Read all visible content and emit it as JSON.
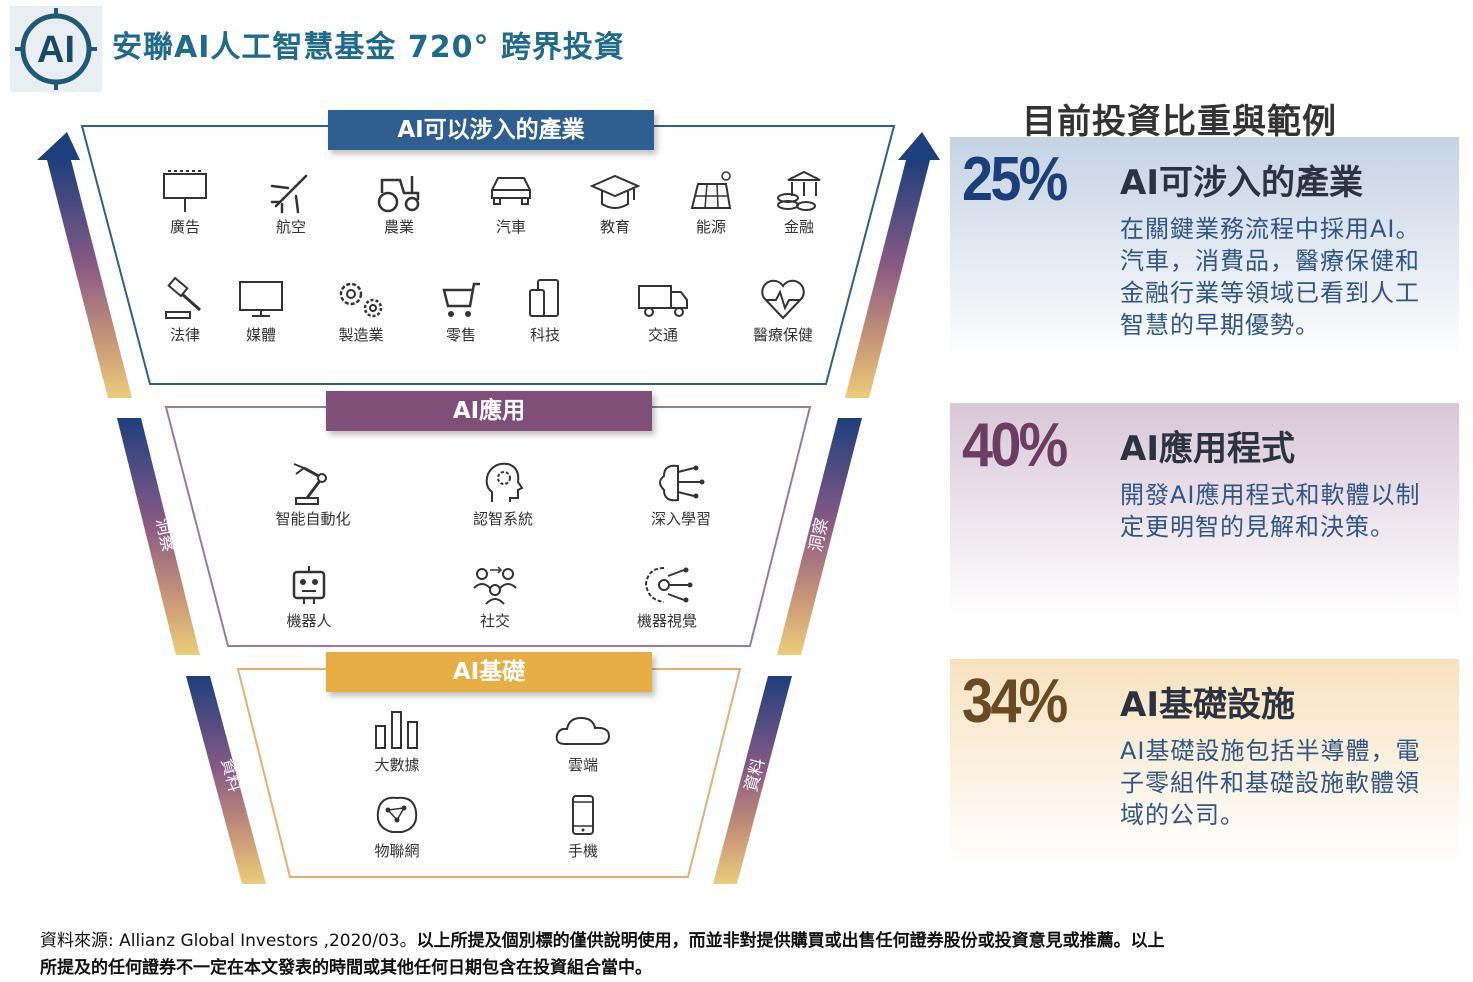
{
  "header": {
    "logo_text": "AI",
    "title": "安聯AI人工智慧基金 720° 跨界投資"
  },
  "funnel": {
    "band1": {
      "title": "AI可以涉入的產業",
      "items": [
        "廣告",
        "航空",
        "農業",
        "汽車",
        "教育",
        "能源",
        "金融",
        "法律",
        "媒體",
        "製造業",
        "零售",
        "科技",
        "交通",
        "醫療保健"
      ]
    },
    "band2": {
      "title": "AI應用",
      "items": [
        "智能自動化",
        "認智系統",
        "深入學習",
        "機器人",
        "社交",
        "機器視覺"
      ]
    },
    "band3": {
      "title": "AI基礎",
      "items": [
        "大數據",
        "雲端",
        "物聯網",
        "手機"
      ]
    },
    "side_words": {
      "insight": "洞察",
      "data": "資料"
    }
  },
  "right_panel": {
    "heading": "目前投資比重與範例",
    "cards": [
      {
        "percent": "25%",
        "title": "AI可涉入的產業",
        "body": "在關鍵業務流程中採用AI。汽車，消費品，醫療保健和金融行業等領域已看到人工智慧的早期優勢。",
        "color": "#1b3f78"
      },
      {
        "percent": "40%",
        "title": "AI應用程式",
        "body": "開發AI應用程式和軟體以制定更明智的見解和決策。",
        "color": "#6b3d60"
      },
      {
        "percent": "34%",
        "title": "AI基礎設施",
        "body": "AI基礎設施包括半導體，電子零組件和基礎設施軟體領域的公司。",
        "color": "#6a4a22"
      }
    ]
  },
  "footer": {
    "source": "資料來源: Allianz Global Investors ,2020/03。",
    "disclaimer": "以上所提及個別標的僅供說明使用，而並非對提供購買或出售任何證券股份或投資意見或推薦。以上所提及的任何證券不一定在本文發表的時間或其他任何日期包含在投資組合當中。"
  },
  "colors": {
    "band1": "#2f5e91",
    "band2": "#7f4f78",
    "band3": "#e6ae45"
  }
}
